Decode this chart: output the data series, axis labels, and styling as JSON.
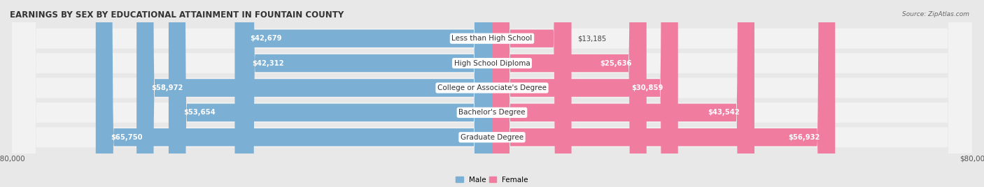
{
  "title": "EARNINGS BY SEX BY EDUCATIONAL ATTAINMENT IN FOUNTAIN COUNTY",
  "source": "Source: ZipAtlas.com",
  "categories": [
    "Less than High School",
    "High School Diploma",
    "College or Associate's Degree",
    "Bachelor's Degree",
    "Graduate Degree"
  ],
  "male_values": [
    42679,
    42312,
    58972,
    53654,
    65750
  ],
  "female_values": [
    13185,
    25636,
    30859,
    43542,
    56932
  ],
  "male_color": "#7bafd4",
  "female_color": "#f07ca0",
  "male_label": "Male",
  "female_label": "Female",
  "xlim": 80000,
  "bar_height": 0.72,
  "bg_color": "#e8e8e8",
  "row_bg": "#f2f2f2",
  "title_fontsize": 8.5,
  "label_fontsize": 7.5,
  "value_fontsize": 7.2,
  "axis_label_fontsize": 7.5,
  "male_value_threshold": 20000,
  "female_value_threshold": 20000
}
